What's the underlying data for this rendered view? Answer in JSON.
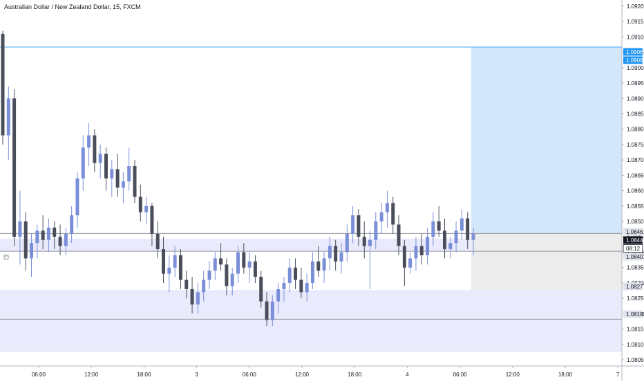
{
  "header": {
    "title": "Australian Dollar / New Zealand Dollar, 15, FXCM"
  },
  "colors": {
    "bull": "#7b8fd8",
    "bear": "#4a4e5a",
    "target_zone": "#d3e6fa",
    "stop_zone": "#ececec",
    "support_zone": "#e9eafc",
    "target_line": "#42a5f5",
    "label_blue": "#2196f3",
    "label_dark": "#131722",
    "label_gray": "#6b6f7a"
  },
  "chart_data": {
    "type": "candlestick",
    "symbol": "AUDNZD",
    "timeframe": "15",
    "ylim": [
      1.0803,
      1.0922
    ],
    "y_ticks": [
      "1.09200",
      "1.09150",
      "1.09100",
      "1.09050",
      "1.09000",
      "1.08950",
      "1.08900",
      "1.08850",
      "1.08800",
      "1.08750",
      "1.08700",
      "1.08650",
      "1.08600",
      "1.08550",
      "1.08500",
      "1.08450",
      "1.08400",
      "1.08350",
      "1.08300",
      "1.08250",
      "1.08200",
      "1.08150",
      "1.08100",
      "1.08050"
    ],
    "x_ticks": [
      "06:00",
      "12:00",
      "18:00",
      "3",
      "06:00",
      "12:00",
      "18:00",
      "4",
      "06:00",
      "12:00",
      "18:00",
      "7"
    ],
    "price_labels": [
      {
        "value": "1.09067",
        "style": "blue"
      },
      {
        "value": "1.09065",
        "style": "blue"
      },
      {
        "value": "1.08461",
        "style": "gray"
      },
      {
        "value": "1.08444",
        "style": "dark"
      },
      {
        "value": "08:12",
        "style": "outline"
      },
      {
        "value": "1.08403",
        "style": "gray"
      },
      {
        "value": "1.08277",
        "style": "gray"
      },
      {
        "value": "1.08182",
        "style": "gray"
      }
    ],
    "zones": [
      {
        "name": "target",
        "from": 1.08461,
        "to": 1.09067
      },
      {
        "name": "stop",
        "from": 1.08277,
        "to": 1.08461
      },
      {
        "name": "support",
        "from": 1.08076,
        "to": 1.08277
      },
      {
        "name": "support-inner",
        "from": 1.08403,
        "to": 1.08444
      }
    ],
    "horizontal_lines": [
      1.09067,
      1.08461,
      1.08403,
      1.08182
    ],
    "candles": [
      [
        1.0911,
        1.0912,
        1.0875,
        1.0878
      ],
      [
        1.0878,
        1.0894,
        1.087,
        1.089
      ],
      [
        1.089,
        1.0893,
        1.0842,
        1.0845
      ],
      [
        1.0845,
        1.086,
        1.0836,
        1.085
      ],
      [
        1.085,
        1.0853,
        1.0834,
        1.0838
      ],
      [
        1.0838,
        1.0846,
        1.0832,
        1.0843
      ],
      [
        1.0843,
        1.0849,
        1.0838,
        1.0847
      ],
      [
        1.0847,
        1.0852,
        1.0841,
        1.0844
      ],
      [
        1.0844,
        1.0851,
        1.084,
        1.0848
      ],
      [
        1.0848,
        1.085,
        1.0841,
        1.0845
      ],
      [
        1.0845,
        1.0849,
        1.0839,
        1.0842
      ],
      [
        1.0842,
        1.0848,
        1.0839,
        1.0846
      ],
      [
        1.0846,
        1.0855,
        1.0843,
        1.0852
      ],
      [
        1.0852,
        1.0866,
        1.0848,
        1.0864
      ],
      [
        1.0864,
        1.0878,
        1.086,
        1.0874
      ],
      [
        1.0874,
        1.0882,
        1.0868,
        1.0878
      ],
      [
        1.0878,
        1.088,
        1.0866,
        1.0869
      ],
      [
        1.0869,
        1.0875,
        1.0864,
        1.0872
      ],
      [
        1.0872,
        1.0874,
        1.086,
        1.0864
      ],
      [
        1.0864,
        1.087,
        1.0858,
        1.0867
      ],
      [
        1.0867,
        1.0872,
        1.0858,
        1.0861
      ],
      [
        1.0861,
        1.0866,
        1.0856,
        1.0863
      ],
      [
        1.0863,
        1.0874,
        1.086,
        1.0868
      ],
      [
        1.0868,
        1.087,
        1.0856,
        1.0858
      ],
      [
        1.0858,
        1.0862,
        1.085,
        1.0853
      ],
      [
        1.0853,
        1.0858,
        1.0849,
        1.0855
      ],
      [
        1.0855,
        1.0856,
        1.0842,
        1.0846
      ],
      [
        1.0846,
        1.085,
        1.0838,
        1.0841
      ],
      [
        1.0841,
        1.0845,
        1.083,
        1.0833
      ],
      [
        1.0833,
        1.0839,
        1.0827,
        1.0835
      ],
      [
        1.0835,
        1.0842,
        1.0832,
        1.0839
      ],
      [
        1.0839,
        1.0841,
        1.0828,
        1.0831
      ],
      [
        1.0831,
        1.0834,
        1.0825,
        1.0828
      ],
      [
        1.0828,
        1.0832,
        1.082,
        1.0823
      ],
      [
        1.0823,
        1.083,
        1.082,
        1.0827
      ],
      [
        1.0827,
        1.0834,
        1.0824,
        1.0831
      ],
      [
        1.0831,
        1.0837,
        1.0828,
        1.0834
      ],
      [
        1.0834,
        1.084,
        1.0831,
        1.0838
      ],
      [
        1.0838,
        1.0843,
        1.0834,
        1.0836
      ],
      [
        1.0836,
        1.0838,
        1.0826,
        1.0829
      ],
      [
        1.0829,
        1.0835,
        1.0826,
        1.0833
      ],
      [
        1.0833,
        1.0842,
        1.083,
        1.084
      ],
      [
        1.084,
        1.0843,
        1.0833,
        1.0835
      ],
      [
        1.0835,
        1.084,
        1.083,
        1.0837
      ],
      [
        1.0837,
        1.0839,
        1.083,
        1.0832
      ],
      [
        1.0832,
        1.0834,
        1.0822,
        1.0824
      ],
      [
        1.0824,
        1.0827,
        1.0816,
        1.0818
      ],
      [
        1.0818,
        1.0826,
        1.0816,
        1.0824
      ],
      [
        1.0824,
        1.083,
        1.082,
        1.0828
      ],
      [
        1.0828,
        1.0832,
        1.0824,
        1.083
      ],
      [
        1.083,
        1.0838,
        1.0827,
        1.0835
      ],
      [
        1.0835,
        1.0838,
        1.0828,
        1.0831
      ],
      [
        1.0831,
        1.0835,
        1.0825,
        1.0827
      ],
      [
        1.0827,
        1.0833,
        1.0824,
        1.083
      ],
      [
        1.083,
        1.084,
        1.0828,
        1.0837
      ],
      [
        1.0837,
        1.0842,
        1.0832,
        1.0834
      ],
      [
        1.0834,
        1.084,
        1.083,
        1.0838
      ],
      [
        1.0838,
        1.0845,
        1.0834,
        1.0842
      ],
      [
        1.0842,
        1.0844,
        1.0834,
        1.0837
      ],
      [
        1.0837,
        1.0843,
        1.0833,
        1.084
      ],
      [
        1.084,
        1.0849,
        1.0837,
        1.0846
      ],
      [
        1.0846,
        1.0855,
        1.0843,
        1.0852
      ],
      [
        1.0852,
        1.0854,
        1.0842,
        1.0845
      ],
      [
        1.0845,
        1.085,
        1.0838,
        1.0842
      ],
      [
        1.0842,
        1.0847,
        1.0828,
        1.0844
      ],
      [
        1.0844,
        1.0853,
        1.0841,
        1.085
      ],
      [
        1.085,
        1.0856,
        1.0846,
        1.0853
      ],
      [
        1.0853,
        1.086,
        1.0848,
        1.0856
      ],
      [
        1.0856,
        1.0858,
        1.0846,
        1.0849
      ],
      [
        1.0849,
        1.0852,
        1.0839,
        1.0842
      ],
      [
        1.0842,
        1.0844,
        1.0829,
        1.0835
      ],
      [
        1.0835,
        1.084,
        1.0833,
        1.0838
      ],
      [
        1.0838,
        1.0845,
        1.0834,
        1.0842
      ],
      [
        1.0842,
        1.0846,
        1.0836,
        1.0839
      ],
      [
        1.0839,
        1.0848,
        1.0836,
        1.0845
      ],
      [
        1.0845,
        1.0853,
        1.0842,
        1.085
      ],
      [
        1.085,
        1.0855,
        1.0845,
        1.0847
      ],
      [
        1.0847,
        1.0851,
        1.0838,
        1.0841
      ],
      [
        1.0841,
        1.0845,
        1.0838,
        1.0843
      ],
      [
        1.0843,
        1.085,
        1.084,
        1.0847
      ],
      [
        1.0847,
        1.0854,
        1.0844,
        1.0851
      ],
      [
        1.0851,
        1.0853,
        1.0841,
        1.0844
      ],
      [
        1.0844,
        1.0848,
        1.0839,
        1.0846
      ]
    ]
  }
}
